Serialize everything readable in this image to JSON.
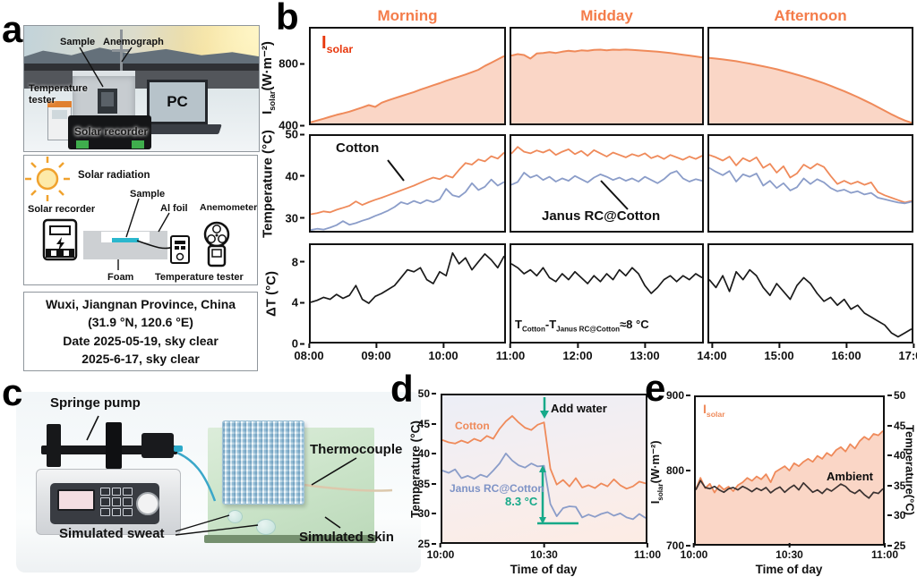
{
  "panel_a": {
    "label": "a",
    "photo": {
      "sample": "Sample",
      "anemograph": "Anemograph",
      "temperature_tester": "Temperature tester",
      "solar_recorder": "Solar recorder",
      "pc": "PC"
    },
    "schematic": {
      "solar_radiation": "Solar radiation",
      "solar_recorder": "Solar recorder",
      "sample": "Sample",
      "al_foil": "Al foil",
      "anemometer": "Anemometer",
      "foam": "Foam",
      "temperature_tester": "Temperature tester"
    },
    "location": {
      "line1": "Wuxi, Jiangnan Province, China",
      "line2": "(31.9 °N, 120.6 °E)",
      "line3": "Date 2025-05-19, sky clear",
      "line4": "2025-6-17, sky clear"
    }
  },
  "panel_b": {
    "label": "b",
    "columns": [
      "Morning",
      "Midday",
      "Afternoon"
    ],
    "isolar": {
      "main": "I",
      "sub": "solar"
    },
    "axis": {
      "isolar_main": "I",
      "isolar_sub": "solar",
      "isolar_units": "(W·m⁻²)",
      "temperature": "Temperature (°C)",
      "dt": "ΔT (°C)"
    },
    "annotations": {
      "cotton": "Cotton",
      "janus": "Janus RC@Cotton",
      "formula": {
        "t1": "T",
        "t1_sub": "Cotton",
        "t2": "-T",
        "t2_sub": "Janus RC@Cotton",
        "approx": "≈8 °C"
      }
    }
  },
  "panel_c": {
    "label": "c",
    "labels": {
      "springe_pump": "Springe pump",
      "thermocouple": "Thermocouple",
      "simulated_sweat": "Simulated sweat",
      "simulated_skin": "Simulated skin"
    }
  },
  "panel_d": {
    "label": "d",
    "ylabel": "Temperature (°C)",
    "xlabel": "Time of day",
    "annotations": {
      "cotton": "Cotton",
      "janus": "Janus RC@Cotton",
      "add_water": "Add water",
      "delta": "8.3 °C"
    }
  },
  "panel_e": {
    "label": "e",
    "ylabel_left": {
      "main": "I",
      "sub": "solar",
      "units": "(W·m⁻²)"
    },
    "ylabel_right": "Temperature(°C)",
    "xlabel": "Time of day",
    "annotations": {
      "isolar_main": "I",
      "isolar_sub": "solar",
      "ambient": "Ambient"
    }
  },
  "colors": {
    "salmon": "#ef8a5a",
    "salmon_fill": "rgba(242,148,104,0.38)",
    "red": "#e8380d",
    "blue": "#8b9dc9",
    "teal": "#17a989",
    "header": "#f47c4a",
    "black": "#1a1a1a"
  },
  "chart_data": [
    {
      "id": "b_isolar_morning",
      "type": "area",
      "xlim": [
        8,
        11
      ],
      "ylim": [
        400,
        1040
      ],
      "y_ticks": [
        {
          "v": 800,
          "label": "800"
        },
        {
          "v": 400,
          "label": "400"
        }
      ],
      "series": [
        {
          "name": "Isolar",
          "color": "#ef8a5a",
          "width": 2,
          "fill": "rgba(242,148,104,0.38)",
          "values": [
            408,
            420,
            432,
            445,
            458,
            468,
            480,
            494,
            508,
            524,
            512,
            540,
            556,
            570,
            584,
            598,
            612,
            628,
            643,
            658,
            672,
            688,
            702,
            716,
            730,
            746,
            762,
            788,
            810,
            832,
            855
          ]
        }
      ]
    },
    {
      "id": "b_isolar_midday",
      "type": "area",
      "xlim": [
        11,
        14
      ],
      "ylim": [
        400,
        1040
      ],
      "series": [
        {
          "name": "Isolar",
          "color": "#ef8a5a",
          "width": 2,
          "fill": "rgba(242,148,104,0.38)",
          "values": [
            858,
            868,
            862,
            838,
            872,
            876,
            882,
            876,
            884,
            890,
            886,
            893,
            890,
            896,
            898,
            894,
            898,
            896,
            899,
            897,
            894,
            891,
            888,
            884,
            880,
            875,
            870,
            864,
            858,
            852,
            846
          ]
        }
      ]
    },
    {
      "id": "b_isolar_afternoon",
      "type": "area",
      "xlim": [
        14,
        17
      ],
      "ylim": [
        400,
        1040
      ],
      "series": [
        {
          "name": "Isolar",
          "color": "#ef8a5a",
          "width": 2,
          "fill": "rgba(242,148,104,0.38)",
          "values": [
            842,
            838,
            832,
            826,
            820,
            812,
            804,
            795,
            786,
            776,
            766,
            754,
            742,
            729,
            716,
            702,
            687,
            671,
            654,
            636,
            618,
            598,
            578,
            556,
            534,
            510,
            486,
            462,
            440,
            420,
            404
          ]
        }
      ]
    },
    {
      "id": "b_temp_morning",
      "type": "line",
      "xlim": [
        8,
        11
      ],
      "ylim": [
        26.5,
        50
      ],
      "y_ticks": [
        {
          "v": 50,
          "label": "50"
        },
        {
          "v": 40,
          "label": "40"
        },
        {
          "v": 30,
          "label": "30"
        }
      ],
      "series": [
        {
          "name": "Cotton",
          "color": "#ef8a5a",
          "width": 1.8,
          "values": [
            30.6,
            30.9,
            31.3,
            31.1,
            31.7,
            32.2,
            32.7,
            33.8,
            32.9,
            33.6,
            34.2,
            34.7,
            35.3,
            35.9,
            36.5,
            37.1,
            37.7,
            38.4,
            39.1,
            39.7,
            39.3,
            40.2,
            39.7,
            41.6,
            43.3,
            42.9,
            44.2,
            43.7,
            45.0,
            44.4,
            45.9
          ]
        },
        {
          "name": "Janus RC@Cotton",
          "color": "#8b9dc9",
          "width": 1.8,
          "values": [
            26.7,
            27.0,
            26.8,
            27.3,
            27.9,
            28.9,
            28.0,
            28.4,
            29.0,
            29.5,
            30.2,
            30.8,
            31.5,
            32.4,
            33.6,
            33.1,
            33.9,
            33.3,
            34.1,
            33.6,
            34.3,
            36.9,
            35.3,
            34.9,
            36.1,
            38.3,
            36.6,
            37.4,
            39.2,
            37.7,
            38.6
          ]
        }
      ]
    },
    {
      "id": "b_temp_midday",
      "type": "line",
      "xlim": [
        11,
        14
      ],
      "ylim": [
        26.5,
        50
      ],
      "series": [
        {
          "name": "Cotton",
          "color": "#ef8a5a",
          "width": 1.8,
          "values": [
            45.6,
            47.3,
            46.1,
            45.7,
            46.4,
            45.9,
            46.6,
            45.3,
            46.1,
            46.7,
            45.5,
            46.3,
            45.1,
            46.5,
            45.7,
            44.9,
            45.9,
            45.3,
            44.7,
            45.5,
            45.0,
            45.7,
            44.5,
            45.1,
            44.3,
            45.3,
            44.7,
            44.1,
            44.9,
            44.3,
            45.1
          ]
        },
        {
          "name": "Janus RC@Cotton",
          "color": "#8b9dc9",
          "width": 1.8,
          "values": [
            37.9,
            38.6,
            40.9,
            39.7,
            40.3,
            39.1,
            39.9,
            38.7,
            39.5,
            38.9,
            40.1,
            39.3,
            38.5,
            39.7,
            40.5,
            39.9,
            39.1,
            39.7,
            38.9,
            39.5,
            38.7,
            39.9,
            39.1,
            38.3,
            39.3,
            40.7,
            41.3,
            39.5,
            38.7,
            39.3,
            38.9
          ]
        }
      ]
    },
    {
      "id": "b_temp_afternoon",
      "type": "line",
      "xlim": [
        14,
        17
      ],
      "ylim": [
        26.5,
        50
      ],
      "series": [
        {
          "name": "Cotton",
          "color": "#ef8a5a",
          "width": 1.8,
          "values": [
            45.3,
            44.7,
            43.9,
            44.9,
            42.7,
            44.5,
            43.7,
            44.7,
            42.1,
            43.1,
            40.9,
            42.5,
            39.7,
            40.7,
            42.9,
            41.9,
            43.1,
            42.3,
            40.1,
            38.1,
            38.9,
            38.1,
            38.7,
            37.9,
            38.5,
            36.1,
            35.3,
            34.7,
            34.1,
            33.5,
            33.9
          ]
        },
        {
          "name": "Janus RC@Cotton",
          "color": "#8b9dc9",
          "width": 1.8,
          "values": [
            42.1,
            41.1,
            40.3,
            41.3,
            38.7,
            40.5,
            39.9,
            40.7,
            37.7,
            38.9,
            37.1,
            38.3,
            36.5,
            37.3,
            39.5,
            38.1,
            39.3,
            38.5,
            37.1,
            36.3,
            36.7,
            35.9,
            36.3,
            35.5,
            35.9,
            34.7,
            34.3,
            33.9,
            33.5,
            33.3,
            33.7
          ]
        }
      ]
    },
    {
      "id": "b_dt_morning",
      "type": "line",
      "xlim": [
        8,
        11
      ],
      "ylim": [
        0,
        9.8
      ],
      "y_ticks": [
        {
          "v": 8,
          "label": "8"
        },
        {
          "v": 4,
          "label": "4"
        },
        {
          "v": 0,
          "label": "0"
        }
      ],
      "series": [
        {
          "name": "dT",
          "color": "#1a1a1a",
          "width": 1.7,
          "values": [
            4.0,
            4.2,
            4.5,
            4.3,
            4.8,
            4.4,
            4.7,
            5.7,
            4.3,
            3.9,
            4.6,
            4.9,
            5.3,
            5.7,
            6.5,
            7.3,
            7.1,
            7.5,
            6.3,
            5.9,
            7.1,
            6.7,
            9.0,
            7.9,
            8.5,
            7.3,
            8.1,
            8.9,
            8.3,
            7.5,
            8.7
          ]
        }
      ]
    },
    {
      "id": "b_dt_midday",
      "type": "line",
      "xlim": [
        11,
        14
      ],
      "ylim": [
        0,
        9.8
      ],
      "series": [
        {
          "name": "dT",
          "color": "#1a1a1a",
          "width": 1.7,
          "values": [
            7.9,
            7.5,
            6.9,
            7.3,
            6.7,
            7.5,
            6.5,
            6.1,
            6.9,
            6.3,
            7.1,
            6.5,
            5.9,
            6.7,
            6.1,
            6.9,
            6.3,
            7.3,
            6.7,
            7.5,
            6.9,
            5.7,
            4.9,
            5.5,
            6.3,
            6.7,
            6.1,
            6.7,
            6.3,
            6.9,
            6.5
          ]
        }
      ]
    },
    {
      "id": "b_dt_afternoon",
      "type": "line",
      "xlim": [
        14,
        17
      ],
      "ylim": [
        0,
        9.8
      ],
      "series": [
        {
          "name": "dT",
          "color": "#1a1a1a",
          "width": 1.7,
          "values": [
            6.3,
            5.5,
            6.7,
            5.1,
            7.1,
            6.3,
            7.3,
            6.7,
            5.5,
            4.7,
            5.9,
            5.1,
            4.3,
            5.7,
            6.5,
            5.9,
            4.9,
            4.1,
            4.5,
            3.7,
            4.3,
            3.3,
            3.7,
            2.9,
            2.5,
            2.1,
            1.7,
            0.9,
            0.5,
            0.9,
            1.3
          ]
        }
      ]
    },
    {
      "id": "b_xaxis",
      "type": "axis",
      "xlim": [
        8,
        17
      ],
      "x_ticks": [
        {
          "v": 8,
          "label": "08:00"
        },
        {
          "v": 9,
          "label": "09:00"
        },
        {
          "v": 10,
          "label": "10:00"
        },
        {
          "v": 11,
          "label": "11:00"
        },
        {
          "v": 12,
          "label": "12:00"
        },
        {
          "v": 13,
          "label": "13:00"
        },
        {
          "v": 14,
          "label": "14:00"
        },
        {
          "v": 15,
          "label": "15:00"
        },
        {
          "v": 16,
          "label": "16:00"
        },
        {
          "v": 17,
          "label": "17:00"
        }
      ]
    },
    {
      "id": "d_chart",
      "type": "line",
      "xlim": [
        10,
        11
      ],
      "ylim": [
        25,
        50
      ],
      "x_ticks": [
        {
          "v": 10,
          "label": "10:00"
        },
        {
          "v": 10.5,
          "label": "10:30"
        },
        {
          "v": 11,
          "label": "11:00"
        }
      ],
      "y_ticks": [
        {
          "v": 50,
          "label": "50"
        },
        {
          "v": 45,
          "label": "45"
        },
        {
          "v": 40,
          "label": "40"
        },
        {
          "v": 35,
          "label": "35"
        },
        {
          "v": 30,
          "label": "30"
        },
        {
          "v": 25,
          "label": "25"
        }
      ],
      "series": [
        {
          "name": "Cotton",
          "color": "#ef8a5a",
          "width": 1.8,
          "values": [
            42.4,
            42.0,
            41.8,
            42.3,
            41.9,
            42.6,
            42.2,
            43.1,
            42.6,
            44.3,
            45.6,
            46.5,
            45.4,
            44.5,
            44.1,
            45.0,
            45.4,
            37.5,
            34.8,
            35.6,
            34.5,
            35.9,
            34.3,
            34.7,
            34.2,
            35.0,
            34.5,
            35.7,
            34.7,
            34.1,
            34.5,
            35.3,
            35.0
          ]
        },
        {
          "name": "Janus RC@Cotton",
          "color": "#8b9dc9",
          "width": 1.8,
          "values": [
            37.2,
            36.8,
            37.4,
            35.9,
            36.3,
            35.8,
            36.5,
            36.1,
            37.2,
            38.4,
            40.1,
            38.9,
            38.1,
            37.7,
            38.4,
            37.9,
            38.0,
            31.5,
            29.4,
            30.8,
            31.1,
            31.0,
            29.2,
            29.7,
            29.3,
            29.8,
            30.1,
            29.5,
            29.9,
            29.2,
            28.9,
            29.8,
            29.1
          ]
        }
      ]
    },
    {
      "id": "e_chart",
      "type": "area",
      "xlim": [
        10,
        11
      ],
      "ylim": [
        700,
        900
      ],
      "ylim2": [
        25,
        50
      ],
      "x_ticks": [
        {
          "v": 10,
          "label": "10:00"
        },
        {
          "v": 10.5,
          "label": "10:30"
        },
        {
          "v": 11,
          "label": "11:00"
        }
      ],
      "y_ticks": [
        {
          "v": 900,
          "label": "900"
        },
        {
          "v": 800,
          "label": "800"
        },
        {
          "v": 700,
          "label": "700"
        }
      ],
      "y_ticks_right": [
        {
          "v": 50,
          "label": "50"
        },
        {
          "v": 45,
          "label": "45"
        },
        {
          "v": 40,
          "label": "40"
        },
        {
          "v": 35,
          "label": "35"
        },
        {
          "v": 30,
          "label": "30"
        },
        {
          "v": 25,
          "label": "25"
        }
      ],
      "series": [
        {
          "name": "Isolar",
          "color": "#ef8a5a",
          "width": 1.8,
          "fill": "rgba(242,148,104,0.38)",
          "values": [
            774,
            790,
            776,
            782,
            770,
            780,
            774,
            778,
            772,
            780,
            784,
            790,
            786,
            792,
            788,
            795,
            784,
            798,
            802,
            806,
            800,
            810,
            806,
            812,
            816,
            812,
            820,
            816,
            824,
            820,
            828,
            832,
            826,
            836,
            830,
            840,
            846,
            842,
            850,
            848,
            854
          ]
        },
        {
          "name": "Ambient",
          "color": "#3a3231",
          "width": 1.7,
          "ylim": [
            25,
            50
          ],
          "values": [
            34.2,
            35.8,
            34.6,
            34.4,
            34.8,
            34.2,
            33.8,
            34.4,
            34.6,
            34.2,
            34.8,
            34.4,
            33.9,
            34.5,
            34.1,
            34.6,
            33.7,
            34.3,
            34.7,
            33.8,
            34.5,
            35.0,
            34.2,
            35.4,
            34.6,
            33.8,
            34.2,
            33.6,
            34.4,
            34.0,
            34.6,
            35.2,
            34.8,
            34.0,
            33.6,
            34.2,
            33.4,
            32.8,
            33.8,
            33.6,
            34.4
          ]
        }
      ]
    }
  ]
}
